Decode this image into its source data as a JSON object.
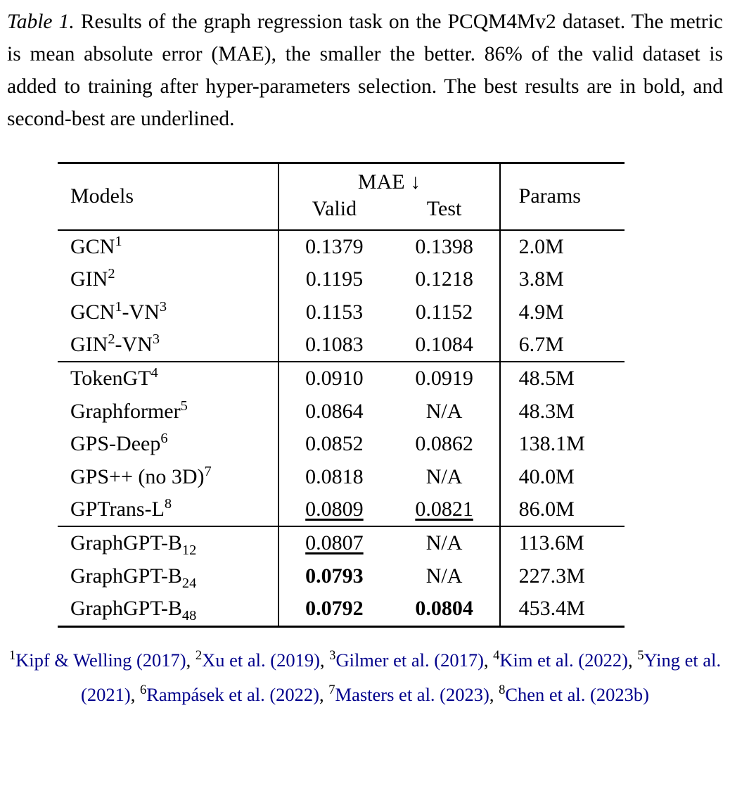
{
  "caption": {
    "label": "Table 1.",
    "text": " Results of the graph regression task on the PCQM4Mv2 dataset. The metric is mean absolute error (MAE), the smaller the better. 86% of the valid dataset is added to training after hyper-parameters selection. The best results are in bold, and second-best are underlined."
  },
  "table": {
    "header": {
      "models": "Models",
      "mae": "MAE ↓",
      "valid": "Valid",
      "test": "Test",
      "params": "Params"
    },
    "groups": [
      {
        "rows": [
          {
            "model": "GCN^1",
            "valid": {
              "v": "0.1379"
            },
            "test": {
              "v": "0.1398"
            },
            "params": "2.0M"
          },
          {
            "model": "GIN^2",
            "valid": {
              "v": "0.1195"
            },
            "test": {
              "v": "0.1218"
            },
            "params": "3.8M"
          },
          {
            "model": "GCN^1-VN^3",
            "valid": {
              "v": "0.1153"
            },
            "test": {
              "v": "0.1152"
            },
            "params": "4.9M"
          },
          {
            "model": "GIN^2-VN^3",
            "valid": {
              "v": "0.1083"
            },
            "test": {
              "v": "0.1084"
            },
            "params": "6.7M"
          }
        ]
      },
      {
        "rows": [
          {
            "model": "TokenGT^4",
            "valid": {
              "v": "0.0910"
            },
            "test": {
              "v": "0.0919"
            },
            "params": "48.5M"
          },
          {
            "model": "Graphformer^5",
            "valid": {
              "v": "0.0864"
            },
            "test": {
              "v": "N/A"
            },
            "params": "48.3M"
          },
          {
            "model": "GPS-Deep^6",
            "valid": {
              "v": "0.0852"
            },
            "test": {
              "v": "0.0862"
            },
            "params": "138.1M"
          },
          {
            "model": "GPS++ (no 3D)^7",
            "valid": {
              "v": "0.0818"
            },
            "test": {
              "v": "N/A"
            },
            "params": "40.0M"
          },
          {
            "model": "GPTrans-L^8",
            "valid": {
              "v": "0.0809",
              "s": "u"
            },
            "test": {
              "v": "0.0821",
              "s": "u"
            },
            "params": "86.0M"
          }
        ]
      },
      {
        "rows": [
          {
            "model": "GraphGPT-B_12",
            "valid": {
              "v": "0.0807",
              "s": "u"
            },
            "test": {
              "v": "N/A"
            },
            "params": "113.6M"
          },
          {
            "model": "GraphGPT-B_24",
            "valid": {
              "v": "0.0793",
              "s": "b"
            },
            "test": {
              "v": "N/A"
            },
            "params": "227.3M"
          },
          {
            "model": "GraphGPT-B_48",
            "valid": {
              "v": "0.0792",
              "s": "b"
            },
            "test": {
              "v": "0.0804",
              "s": "b"
            },
            "params": "453.4M"
          }
        ]
      }
    ]
  },
  "footnotes": {
    "separator": ", ",
    "items": [
      {
        "num": "1",
        "text": "Kipf & Welling (2017)"
      },
      {
        "num": "2",
        "text": "Xu et al. (2019)"
      },
      {
        "num": "3",
        "text": "Gilmer et al. (2017)"
      },
      {
        "num": "4",
        "text": "Kim et al. (2022)"
      },
      {
        "num": "5",
        "text": "Ying et al. (2021)"
      },
      {
        "num": "6",
        "text": "Rampásek et al. (2022)"
      },
      {
        "num": "7",
        "text": "Masters et al. (2023)"
      },
      {
        "num": "8",
        "text": "Chen et al. (2023b)"
      }
    ]
  },
  "colors": {
    "citation": "#00008B",
    "text": "#000000",
    "background": "#FFFFFF"
  }
}
